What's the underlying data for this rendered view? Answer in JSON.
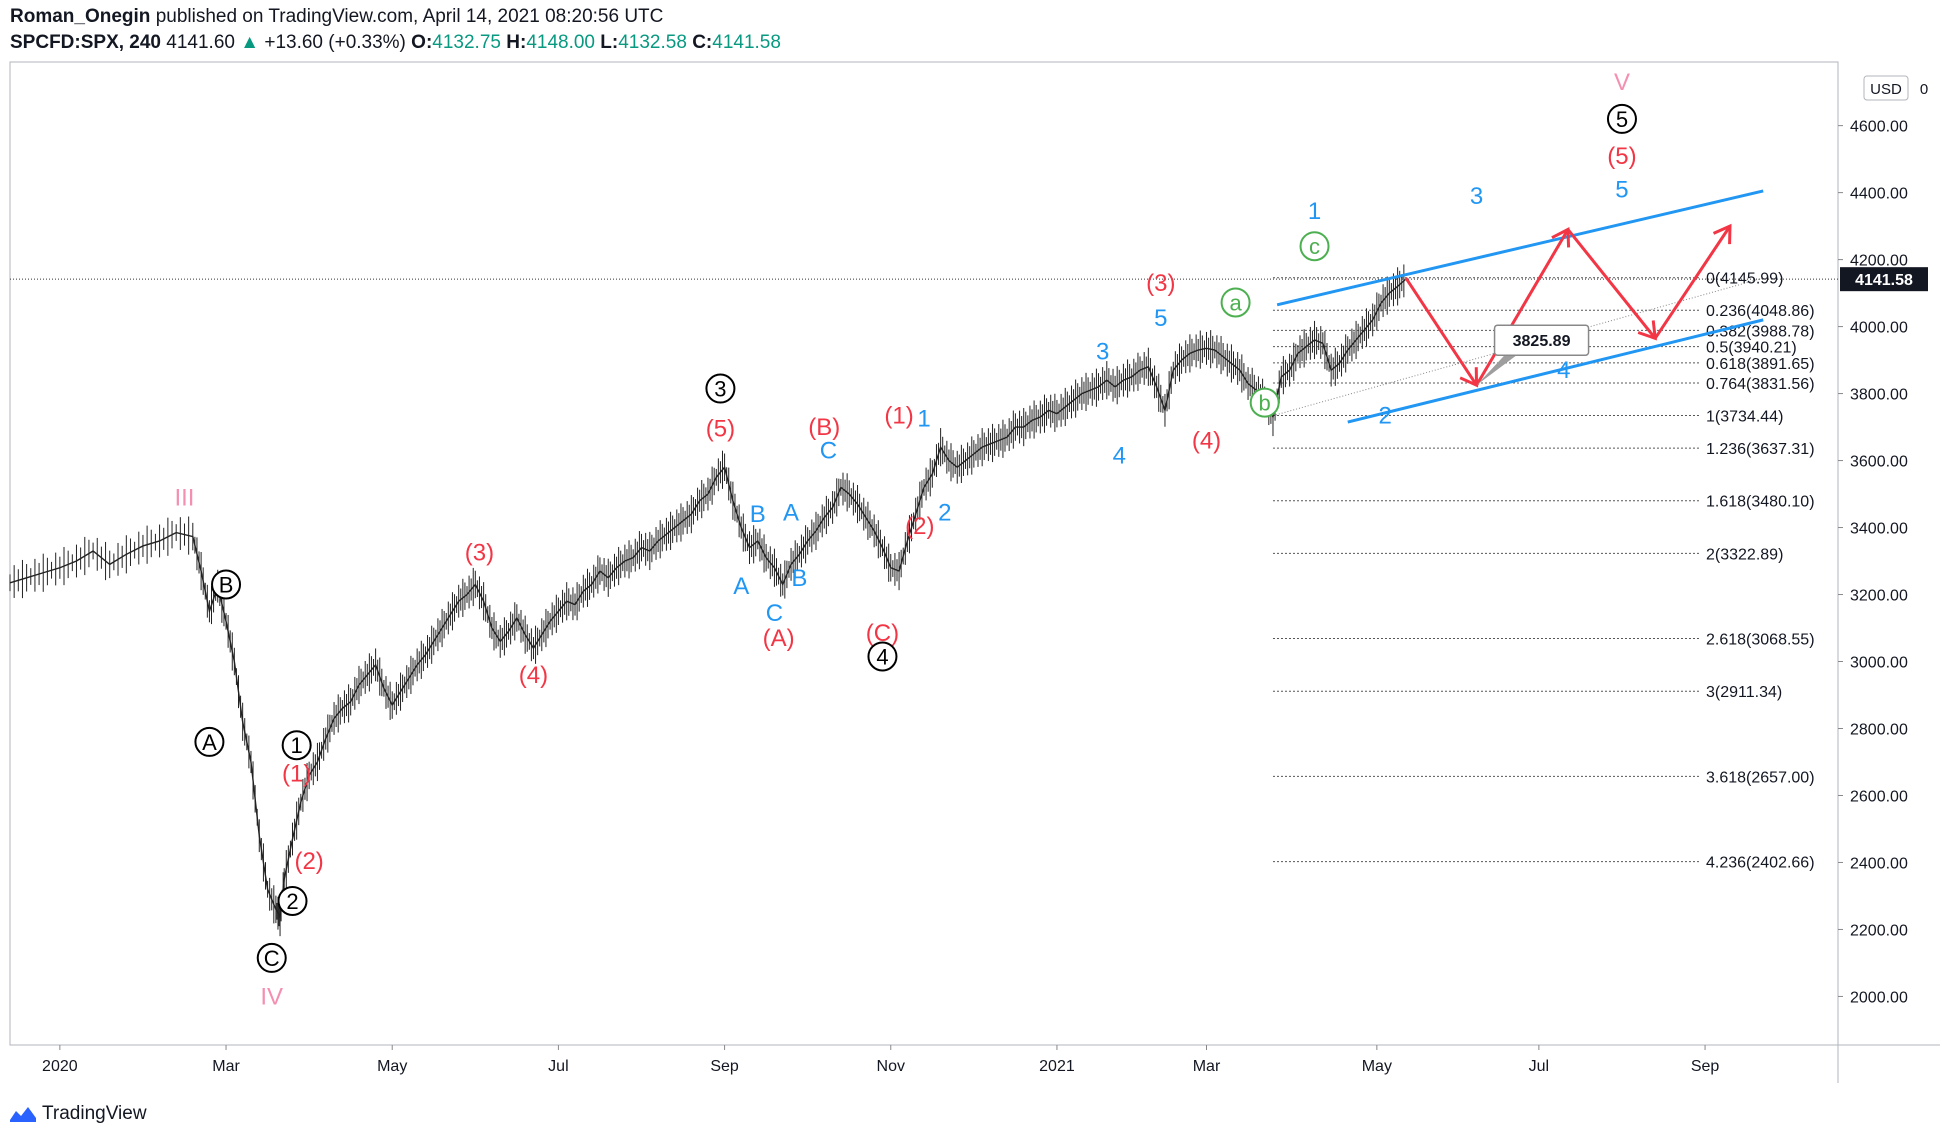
{
  "header": {
    "author": "Roman_Onegin",
    "published_text": "published on TradingView.com, April 14, 2021 08:20:56 UTC",
    "symbol": "SPCFD:SPX, 240",
    "last": "4141.60",
    "change_arrow": "▲",
    "change": "+13.60 (+0.33%)",
    "o_label": "O:",
    "o": "4132.75",
    "h_label": "H:",
    "h": "4148.00",
    "l_label": "L:",
    "l": "4132.58",
    "c_label": "C:",
    "c": "4141.58"
  },
  "footer": {
    "brand": "TradingView",
    "logo_icon": "tradingview-logo-icon"
  },
  "colors": {
    "up": "#089981",
    "red": "#f23645",
    "blue": "#2196f3",
    "pink": "#f48fb1",
    "green": "#4caf50",
    "black": "#000000"
  },
  "chart_data": {
    "type": "line",
    "series": [
      {
        "values": [
          [
            0,
            3235
          ],
          [
            4,
            3250
          ],
          [
            8,
            3265
          ],
          [
            12,
            3280
          ],
          [
            16,
            3300
          ],
          [
            20,
            3330
          ],
          [
            24,
            3290
          ],
          [
            28,
            3320
          ],
          [
            32,
            3345
          ],
          [
            36,
            3360
          ],
          [
            40,
            3385
          ],
          [
            44,
            3373
          ],
          [
            46,
            3270
          ],
          [
            48,
            3150
          ],
          [
            50,
            3225
          ],
          [
            52,
            3120
          ],
          [
            54,
            3000
          ],
          [
            56,
            2820
          ],
          [
            58,
            2700
          ],
          [
            60,
            2480
          ],
          [
            62,
            2320
          ],
          [
            64,
            2260
          ],
          [
            65,
            2237
          ],
          [
            66,
            2350
          ],
          [
            68,
            2470
          ],
          [
            70,
            2580
          ],
          [
            72,
            2660
          ],
          [
            74,
            2700
          ],
          [
            76,
            2770
          ],
          [
            78,
            2830
          ],
          [
            80,
            2860
          ],
          [
            82,
            2880
          ],
          [
            84,
            2930
          ],
          [
            86,
            2960
          ],
          [
            88,
            2990
          ],
          [
            90,
            2920
          ],
          [
            92,
            2870
          ],
          [
            94,
            2910
          ],
          [
            96,
            2950
          ],
          [
            98,
            2990
          ],
          [
            100,
            3020
          ],
          [
            102,
            3060
          ],
          [
            104,
            3100
          ],
          [
            106,
            3140
          ],
          [
            108,
            3180
          ],
          [
            110,
            3200
          ],
          [
            112,
            3230
          ],
          [
            114,
            3180
          ],
          [
            116,
            3100
          ],
          [
            118,
            3060
          ],
          [
            120,
            3090
          ],
          [
            122,
            3130
          ],
          [
            124,
            3080
          ],
          [
            126,
            3040
          ],
          [
            128,
            3080
          ],
          [
            130,
            3120
          ],
          [
            132,
            3150
          ],
          [
            134,
            3180
          ],
          [
            136,
            3170
          ],
          [
            138,
            3210
          ],
          [
            140,
            3230
          ],
          [
            142,
            3270
          ],
          [
            144,
            3250
          ],
          [
            146,
            3280
          ],
          [
            148,
            3300
          ],
          [
            150,
            3310
          ],
          [
            152,
            3340
          ],
          [
            154,
            3330
          ],
          [
            156,
            3360
          ],
          [
            158,
            3380
          ],
          [
            160,
            3400
          ],
          [
            162,
            3420
          ],
          [
            164,
            3440
          ],
          [
            166,
            3480
          ],
          [
            168,
            3500
          ],
          [
            170,
            3550
          ],
          [
            172,
            3580
          ],
          [
            174,
            3480
          ],
          [
            176,
            3400
          ],
          [
            178,
            3340
          ],
          [
            180,
            3360
          ],
          [
            182,
            3310
          ],
          [
            184,
            3280
          ],
          [
            186,
            3230
          ],
          [
            188,
            3290
          ],
          [
            190,
            3320
          ],
          [
            192,
            3360
          ],
          [
            194,
            3390
          ],
          [
            196,
            3430
          ],
          [
            198,
            3460
          ],
          [
            200,
            3520
          ],
          [
            202,
            3500
          ],
          [
            204,
            3470
          ],
          [
            206,
            3430
          ],
          [
            208,
            3390
          ],
          [
            210,
            3340
          ],
          [
            212,
            3280
          ],
          [
            214,
            3270
          ],
          [
            216,
            3360
          ],
          [
            218,
            3440
          ],
          [
            220,
            3520
          ],
          [
            222,
            3560
          ],
          [
            224,
            3640
          ],
          [
            226,
            3600
          ],
          [
            228,
            3580
          ],
          [
            230,
            3600
          ],
          [
            232,
            3620
          ],
          [
            234,
            3640
          ],
          [
            236,
            3650
          ],
          [
            238,
            3660
          ],
          [
            240,
            3670
          ],
          [
            242,
            3700
          ],
          [
            244,
            3700
          ],
          [
            246,
            3720
          ],
          [
            248,
            3730
          ],
          [
            250,
            3750
          ],
          [
            252,
            3740
          ],
          [
            254,
            3760
          ],
          [
            256,
            3780
          ],
          [
            258,
            3800
          ],
          [
            260,
            3810
          ],
          [
            262,
            3820
          ],
          [
            264,
            3840
          ],
          [
            266,
            3820
          ],
          [
            268,
            3840
          ],
          [
            270,
            3850
          ],
          [
            272,
            3870
          ],
          [
            274,
            3880
          ],
          [
            276,
            3820
          ],
          [
            278,
            3750
          ],
          [
            280,
            3870
          ],
          [
            282,
            3900
          ],
          [
            284,
            3920
          ],
          [
            286,
            3930
          ],
          [
            288,
            3935
          ],
          [
            290,
            3930
          ],
          [
            292,
            3910
          ],
          [
            294,
            3890
          ],
          [
            296,
            3870
          ],
          [
            298,
            3830
          ],
          [
            300,
            3810
          ],
          [
            302,
            3780
          ],
          [
            304,
            3730
          ],
          [
            306,
            3850
          ],
          [
            308,
            3870
          ],
          [
            310,
            3920
          ],
          [
            312,
            3940
          ],
          [
            314,
            3960
          ],
          [
            316,
            3950
          ],
          [
            318,
            3870
          ],
          [
            320,
            3890
          ],
          [
            322,
            3930
          ],
          [
            324,
            3960
          ],
          [
            326,
            3990
          ],
          [
            328,
            4020
          ],
          [
            330,
            4070
          ],
          [
            332,
            4100
          ],
          [
            334,
            4120
          ],
          [
            336,
            4142
          ]
        ]
      }
    ],
    "projection_path": [
      [
        336,
        4145
      ],
      [
        353,
        3825
      ],
      [
        375,
        4290
      ],
      [
        396,
        3965
      ],
      [
        414,
        4300
      ]
    ],
    "channel_upper": [
      [
        305,
        4065
      ],
      [
        422,
        4405
      ]
    ],
    "channel_lower": [
      [
        322,
        3715
      ],
      [
        422,
        4020
      ]
    ],
    "fib_levels": [
      {
        "ratio": "0",
        "price": 4145.99,
        "label": "0(4145.99)"
      },
      {
        "ratio": "0.236",
        "price": 4048.86,
        "label": "0.236(4048.86)"
      },
      {
        "ratio": "0.382",
        "price": 3988.78,
        "label": "0.382(3988.78)"
      },
      {
        "ratio": "0.5",
        "price": 3940.21,
        "label": "0.5(3940.21)"
      },
      {
        "ratio": "0.618",
        "price": 3891.65,
        "label": "0.618(3891.65)"
      },
      {
        "ratio": "0.764",
        "price": 3831.56,
        "label": "0.764(3831.56)"
      },
      {
        "ratio": "1",
        "price": 3734.44,
        "label": "1(3734.44)"
      },
      {
        "ratio": "1.236",
        "price": 3637.31,
        "label": "1.236(3637.31)"
      },
      {
        "ratio": "1.618",
        "price": 3480.1,
        "label": "1.618(3480.10)"
      },
      {
        "ratio": "2",
        "price": 3322.89,
        "label": "2(3322.89)"
      },
      {
        "ratio": "2.618",
        "price": 3068.55,
        "label": "2.618(3068.55)"
      },
      {
        "ratio": "3",
        "price": 2911.34,
        "label": "3(2911.34)"
      },
      {
        "ratio": "3.618",
        "price": 2657.0,
        "label": "3.618(2657.00)"
      },
      {
        "ratio": "4.236",
        "price": 2402.66,
        "label": "4.236(2402.66)"
      }
    ],
    "y_ticks": [
      "4600.00",
      "4400.00",
      "4200.00",
      "4000.00",
      "3800.00",
      "3600.00",
      "3400.00",
      "3200.00",
      "3000.00",
      "2800.00",
      "2600.00",
      "2400.00",
      "2200.00",
      "2000.00"
    ],
    "y_tick_values": [
      4600,
      4400,
      4200,
      4000,
      3800,
      3600,
      3400,
      3200,
      3000,
      2800,
      2600,
      2400,
      2200,
      2000
    ],
    "x_ticks": [
      {
        "x": 12,
        "label": "2020"
      },
      {
        "x": 52,
        "label": "Mar"
      },
      {
        "x": 92,
        "label": "May"
      },
      {
        "x": 132,
        "label": "Jul"
      },
      {
        "x": 172,
        "label": "Sep"
      },
      {
        "x": 212,
        "label": "Nov"
      },
      {
        "x": 252,
        "label": "2021"
      },
      {
        "x": 288,
        "label": "Mar"
      },
      {
        "x": 329,
        "label": "May"
      },
      {
        "x": 368,
        "label": "Jul"
      },
      {
        "x": 408,
        "label": "Sep"
      }
    ],
    "xlim": [
      0,
      440
    ],
    "ylim": [
      1855,
      4790
    ],
    "currency": "USD",
    "scale_mode": "0",
    "last_price": "4141.58",
    "callout": {
      "label": "3825.89",
      "x": 353,
      "y": 3825
    },
    "wave_labels": [
      {
        "t": "III",
        "x": 42,
        "y": 3490,
        "c": "pink",
        "circle": false
      },
      {
        "t": "B",
        "x": 52,
        "y": 3230,
        "c": "black",
        "circle": true
      },
      {
        "t": "A",
        "x": 48,
        "y": 2760,
        "c": "black",
        "circle": true
      },
      {
        "t": "1",
        "x": 69,
        "y": 2750,
        "c": "black",
        "circle": true
      },
      {
        "t": "(1)",
        "x": 69,
        "y": 2665,
        "c": "red",
        "circle": false
      },
      {
        "t": "(2)",
        "x": 72,
        "y": 2405,
        "c": "red",
        "circle": false
      },
      {
        "t": "2",
        "x": 68,
        "y": 2285,
        "c": "black",
        "circle": true
      },
      {
        "t": "C",
        "x": 63,
        "y": 2115,
        "c": "black",
        "circle": true
      },
      {
        "t": "IV",
        "x": 63,
        "y": 2000,
        "c": "pink",
        "circle": false
      },
      {
        "t": "(3)",
        "x": 113,
        "y": 3325,
        "c": "red",
        "circle": false
      },
      {
        "t": "(4)",
        "x": 126,
        "y": 2960,
        "c": "red",
        "circle": false
      },
      {
        "t": "3",
        "x": 171,
        "y": 3815,
        "c": "black",
        "circle": true
      },
      {
        "t": "(5)",
        "x": 171,
        "y": 3695,
        "c": "red",
        "circle": false
      },
      {
        "t": "B",
        "x": 180,
        "y": 3440,
        "c": "blue",
        "circle": false
      },
      {
        "t": "A",
        "x": 188,
        "y": 3445,
        "c": "blue",
        "circle": false
      },
      {
        "t": "A",
        "x": 176,
        "y": 3225,
        "c": "blue",
        "circle": false
      },
      {
        "t": "B",
        "x": 190,
        "y": 3250,
        "c": "blue",
        "circle": false
      },
      {
        "t": "C",
        "x": 184,
        "y": 3145,
        "c": "blue",
        "circle": false
      },
      {
        "t": "(A)",
        "x": 185,
        "y": 3070,
        "c": "red",
        "circle": false
      },
      {
        "t": "(B)",
        "x": 196,
        "y": 3700,
        "c": "red",
        "circle": false
      },
      {
        "t": "C",
        "x": 197,
        "y": 3630,
        "c": "blue",
        "circle": false
      },
      {
        "t": "(1)",
        "x": 214,
        "y": 3735,
        "c": "red",
        "circle": false
      },
      {
        "t": "1",
        "x": 220,
        "y": 3725,
        "c": "blue",
        "circle": false
      },
      {
        "t": "(2)",
        "x": 219,
        "y": 3405,
        "c": "red",
        "circle": false
      },
      {
        "t": "2",
        "x": 225,
        "y": 3445,
        "c": "blue",
        "circle": false
      },
      {
        "t": "(C)",
        "x": 210,
        "y": 3085,
        "c": "red",
        "circle": false
      },
      {
        "t": "4",
        "x": 210,
        "y": 3015,
        "c": "black",
        "circle": true
      },
      {
        "t": "3",
        "x": 263,
        "y": 3925,
        "c": "blue",
        "circle": false
      },
      {
        "t": "4",
        "x": 267,
        "y": 3615,
        "c": "blue",
        "circle": false
      },
      {
        "t": "5",
        "x": 277,
        "y": 4025,
        "c": "blue",
        "circle": false
      },
      {
        "t": "(3)",
        "x": 277,
        "y": 4130,
        "c": "red",
        "circle": false
      },
      {
        "t": "(4)",
        "x": 288,
        "y": 3660,
        "c": "red",
        "circle": false
      },
      {
        "t": "a",
        "x": 295,
        "y": 4072,
        "c": "green",
        "circle": true
      },
      {
        "t": "b",
        "x": 302,
        "y": 3773,
        "c": "green",
        "circle": true
      },
      {
        "t": "c",
        "x": 314,
        "y": 4240,
        "c": "green",
        "circle": true
      },
      {
        "t": "1",
        "x": 314,
        "y": 4345,
        "c": "blue",
        "circle": false
      },
      {
        "t": "2",
        "x": 331,
        "y": 3735,
        "c": "blue",
        "circle": false
      },
      {
        "t": "3",
        "x": 353,
        "y": 4390,
        "c": "blue",
        "circle": false
      },
      {
        "t": "4",
        "x": 374,
        "y": 3870,
        "c": "blue",
        "circle": false
      },
      {
        "t": "5",
        "x": 388,
        "y": 4410,
        "c": "blue",
        "circle": false
      },
      {
        "t": "(5)",
        "x": 388,
        "y": 4510,
        "c": "red",
        "circle": false
      },
      {
        "t": "5",
        "x": 388,
        "y": 4620,
        "c": "black",
        "circle": true
      },
      {
        "t": "V",
        "x": 388,
        "y": 4730,
        "c": "pink",
        "circle": false
      }
    ]
  }
}
